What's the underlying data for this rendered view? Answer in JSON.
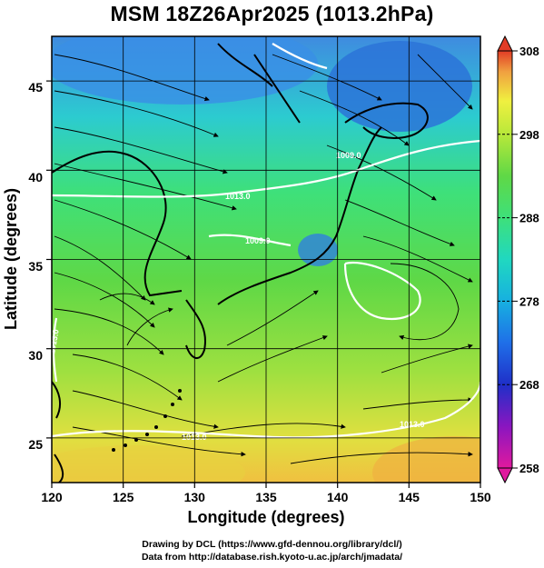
{
  "title": "MSM 18Z26Apr2025 (1013.2hPa)",
  "map": {
    "projection": "lat-lon",
    "lon_range": [
      120,
      150
    ],
    "lat_range": [
      22.5,
      47.5
    ],
    "xlabel": "Longitude (degrees)",
    "ylabel": "Latitude  (degrees)",
    "x_ticks": [
      "120",
      "125",
      "130",
      "135",
      "140",
      "145",
      "150"
    ],
    "y_ticks": [
      "25",
      "30",
      "35",
      "40",
      "45"
    ],
    "grid": true,
    "field": "temperature (K) shaded, streamlines of wind, white isobar contours",
    "contour_labels": [
      "1013.0",
      "1013.0",
      "1013.0",
      "1013.0",
      "1009.0",
      "1009.0"
    ]
  },
  "colorbar": {
    "min": 258,
    "max": 308,
    "tick_labels": [
      "308",
      "298",
      "288",
      "278",
      "268",
      "258"
    ],
    "colors": [
      "#e0199e",
      "#8a16c0",
      "#1f2fc8",
      "#1f6fe8",
      "#17b0e0",
      "#20d8c0",
      "#3ee07a",
      "#5fd846",
      "#b8e83a",
      "#f0f040",
      "#f0a040",
      "#e23c26"
    ]
  },
  "credits": {
    "line1": "Drawing by DCL (https://www.gfd-dennou.org/library/dcl/)",
    "line2": "Data from http://database.rish.kyoto-u.ac.jp/arch/jmadata/"
  }
}
